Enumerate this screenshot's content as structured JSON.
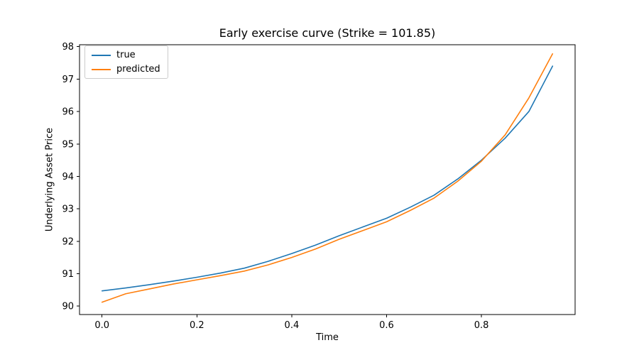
{
  "figure": {
    "title": "Early exercise curve (Strike = 101.85)",
    "xlabel": "Time",
    "ylabel": "Underlying Asset Price"
  },
  "legend": {
    "items": [
      {
        "label": "true",
        "color": "#1f77b4"
      },
      {
        "label": "predicted",
        "color": "#ff7f0e"
      }
    ]
  },
  "chart_data": {
    "type": "line",
    "title": "Early exercise curve (Strike = 101.85)",
    "xlabel": "Time",
    "ylabel": "Underlying Asset Price",
    "x": [
      0.0,
      0.05,
      0.1,
      0.15,
      0.2,
      0.25,
      0.3,
      0.35,
      0.4,
      0.45,
      0.5,
      0.55,
      0.6,
      0.65,
      0.7,
      0.75,
      0.8,
      0.85,
      0.9,
      0.95
    ],
    "series": [
      {
        "name": "true",
        "color": "#1f77b4",
        "values": [
          90.47,
          90.56,
          90.66,
          90.77,
          90.89,
          91.02,
          91.17,
          91.38,
          91.62,
          91.88,
          92.17,
          92.44,
          92.71,
          93.05,
          93.42,
          93.92,
          94.5,
          95.18,
          96.0,
          97.4
        ]
      },
      {
        "name": "predicted",
        "color": "#ff7f0e",
        "values": [
          90.12,
          90.38,
          90.53,
          90.68,
          90.81,
          90.94,
          91.08,
          91.27,
          91.5,
          91.76,
          92.06,
          92.33,
          92.6,
          92.95,
          93.33,
          93.85,
          94.47,
          95.28,
          96.42,
          97.78
        ]
      }
    ],
    "xlim": [
      -0.0475,
      0.9975
    ],
    "ylim": [
      89.74,
      98.06
    ],
    "xticks": [
      0.0,
      0.2,
      0.4,
      0.6,
      0.8
    ],
    "xtick_labels": [
      "0.0",
      "0.2",
      "0.4",
      "0.6",
      "0.8"
    ],
    "yticks": [
      90,
      91,
      92,
      93,
      94,
      95,
      96,
      97,
      98
    ],
    "ytick_labels": [
      "90",
      "91",
      "92",
      "93",
      "94",
      "95",
      "96",
      "97",
      "98"
    ],
    "grid": false,
    "legend_position": "upper-left",
    "spine_color": "#000000",
    "tick_color": "#000000"
  }
}
